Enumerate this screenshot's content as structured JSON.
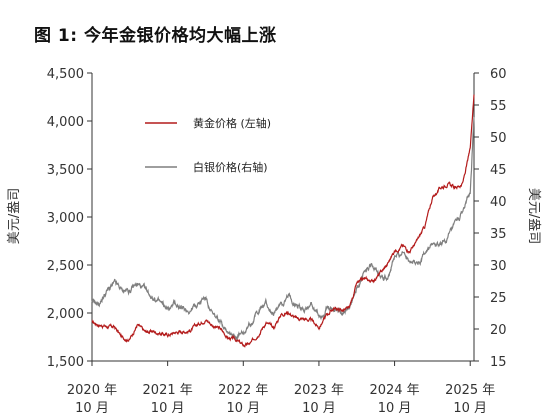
{
  "chart_data": {
    "type": "line",
    "title": "图 1: 今年金银价格均大幅上涨",
    "ylabel": "美元/盎司",
    "y2label": "美元/盎司",
    "ylim": [
      1500,
      4500
    ],
    "y2lim": [
      15,
      60
    ],
    "yticks": [
      "1,500",
      "2,000",
      "2,500",
      "3,000",
      "3,500",
      "4,000",
      "4,500"
    ],
    "y2ticks": [
      "15",
      "20",
      "25",
      "30",
      "35",
      "40",
      "45",
      "50",
      "55",
      "60"
    ],
    "xticks": [
      {
        "line1": "2020 年",
        "line2": "10 月"
      },
      {
        "line1": "2021 年",
        "line2": "10 月"
      },
      {
        "line1": "2022 年",
        "line2": "10 月"
      },
      {
        "line1": "2023 年",
        "line2": "10 月"
      },
      {
        "line1": "2024 年",
        "line2": "10 月"
      },
      {
        "line1": "2025 年",
        "line2": "10 月"
      }
    ],
    "legend_position": "upper-left",
    "colors": {
      "gold": "#b31b1b",
      "silver": "#7f7f7f"
    },
    "series": [
      {
        "name": "黄金价格 (左轴)",
        "axis": "left",
        "x": [
          2020.75,
          2020.85,
          2020.95,
          2021.05,
          2021.15,
          2021.25,
          2021.35,
          2021.45,
          2021.55,
          2021.65,
          2021.75,
          2021.85,
          2021.95,
          2022.05,
          2022.15,
          2022.25,
          2022.35,
          2022.45,
          2022.55,
          2022.65,
          2022.75,
          2022.85,
          2022.95,
          2023.05,
          2023.15,
          2023.25,
          2023.35,
          2023.45,
          2023.55,
          2023.65,
          2023.75,
          2023.85,
          2023.95,
          2024.05,
          2024.15,
          2024.25,
          2024.35,
          2024.45,
          2024.55,
          2024.65,
          2024.75,
          2024.85,
          2024.95,
          2025.05,
          2025.15,
          2025.25,
          2025.35,
          2025.45,
          2025.55,
          2025.65,
          2025.75,
          2025.8
        ],
        "y": [
          1900,
          1880,
          1860,
          1850,
          1740,
          1730,
          1880,
          1800,
          1810,
          1790,
          1770,
          1800,
          1810,
          1820,
          1880,
          1940,
          1870,
          1830,
          1740,
          1720,
          1660,
          1680,
          1790,
          1900,
          1840,
          1990,
          2010,
          1940,
          1940,
          1920,
          1850,
          1980,
          2050,
          2030,
          2040,
          2300,
          2350,
          2330,
          2400,
          2500,
          2650,
          2700,
          2650,
          2750,
          2900,
          3200,
          3300,
          3350,
          3300,
          3350,
          3700,
          4300
        ]
      },
      {
        "name": "白银价格(右轴)",
        "axis": "right",
        "x": [
          2020.75,
          2020.85,
          2020.95,
          2021.05,
          2021.15,
          2021.25,
          2021.35,
          2021.45,
          2021.55,
          2021.65,
          2021.75,
          2021.85,
          2021.95,
          2022.05,
          2022.15,
          2022.25,
          2022.35,
          2022.45,
          2022.55,
          2022.65,
          2022.75,
          2022.85,
          2022.95,
          2023.05,
          2023.15,
          2023.25,
          2023.35,
          2023.45,
          2023.55,
          2023.65,
          2023.75,
          2023.85,
          2023.95,
          2024.05,
          2024.15,
          2024.25,
          2024.35,
          2024.45,
          2024.55,
          2024.65,
          2024.75,
          2024.85,
          2024.95,
          2025.05,
          2025.15,
          2025.25,
          2025.35,
          2025.45,
          2025.55,
          2025.65,
          2025.75,
          2025.8
        ],
        "y": [
          24,
          24,
          26,
          27,
          26,
          26,
          27,
          26,
          25,
          24,
          23,
          24,
          23,
          23,
          24,
          25,
          22,
          21,
          20,
          19,
          19,
          21,
          23,
          24,
          22,
          24,
          25,
          24,
          23,
          24,
          22,
          23,
          23,
          23,
          23,
          26,
          29,
          30,
          29,
          28,
          31,
          32,
          31,
          30,
          32,
          33,
          33,
          34,
          36,
          38,
          42,
          53
        ]
      }
    ]
  }
}
